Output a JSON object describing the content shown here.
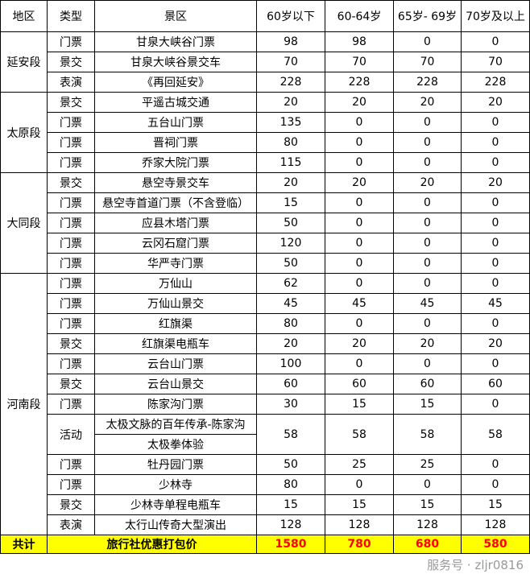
{
  "headers": [
    "地区",
    "类型",
    "景区",
    "60岁以下",
    "60-64岁",
    "65岁- 69岁",
    "70岁及以上"
  ],
  "regions": [
    {
      "name": "延安段",
      "rows": [
        {
          "type": "门票",
          "scenic": [
            "甘泉大峡谷门票"
          ],
          "prices": [
            98,
            98,
            0,
            0
          ]
        },
        {
          "type": "景交",
          "scenic": [
            "甘泉大峡谷景交车"
          ],
          "prices": [
            70,
            70,
            70,
            70
          ]
        },
        {
          "type": "表演",
          "scenic": [
            "《再回延安》"
          ],
          "prices": [
            228,
            228,
            228,
            228
          ]
        }
      ]
    },
    {
      "name": "太原段",
      "rows": [
        {
          "type": "景交",
          "scenic": [
            "平遥古城交通"
          ],
          "prices": [
            20,
            20,
            20,
            20
          ]
        },
        {
          "type": "门票",
          "scenic": [
            "五台山门票"
          ],
          "prices": [
            135,
            0,
            0,
            0
          ]
        },
        {
          "type": "门票",
          "scenic": [
            "晋祠门票"
          ],
          "prices": [
            80,
            0,
            0,
            0
          ]
        },
        {
          "type": "门票",
          "scenic": [
            "乔家大院门票"
          ],
          "prices": [
            115,
            0,
            0,
            0
          ]
        }
      ]
    },
    {
      "name": "大同段",
      "rows": [
        {
          "type": "景交",
          "scenic": [
            "悬空寺景交车"
          ],
          "prices": [
            20,
            20,
            20,
            20
          ]
        },
        {
          "type": "门票",
          "scenic": [
            "悬空寺首道门票（不含登临）"
          ],
          "prices": [
            15,
            0,
            0,
            0
          ]
        },
        {
          "type": "门票",
          "scenic": [
            "应县木塔门票"
          ],
          "prices": [
            50,
            0,
            0,
            0
          ]
        },
        {
          "type": "门票",
          "scenic": [
            "云冈石窟门票"
          ],
          "prices": [
            120,
            0,
            0,
            0
          ]
        },
        {
          "type": "门票",
          "scenic": [
            "华严寺门票"
          ],
          "prices": [
            50,
            0,
            0,
            0
          ]
        }
      ]
    },
    {
      "name": "河南段",
      "rows": [
        {
          "type": "门票",
          "scenic": [
            "万仙山"
          ],
          "prices": [
            62,
            0,
            0,
            0
          ]
        },
        {
          "type": "门票",
          "scenic": [
            "万仙山景交"
          ],
          "prices": [
            45,
            45,
            45,
            45
          ]
        },
        {
          "type": "门票",
          "scenic": [
            "红旗渠"
          ],
          "prices": [
            80,
            0,
            0,
            0
          ]
        },
        {
          "type": "景交",
          "scenic": [
            "红旗渠电瓶车"
          ],
          "prices": [
            20,
            20,
            20,
            20
          ]
        },
        {
          "type": "门票",
          "scenic": [
            "云台山门票"
          ],
          "prices": [
            100,
            0,
            0,
            0
          ]
        },
        {
          "type": "景交",
          "scenic": [
            "云台山景交"
          ],
          "prices": [
            60,
            60,
            60,
            60
          ]
        },
        {
          "type": "门票",
          "scenic": [
            "陈家沟门票"
          ],
          "prices": [
            30,
            15,
            15,
            0
          ]
        },
        {
          "type": "活动",
          "scenic": [
            "太极文脉的百年传承-陈家沟",
            "太极拳体验"
          ],
          "prices": [
            58,
            58,
            58,
            58
          ]
        },
        {
          "type": "门票",
          "scenic": [
            "牡丹园门票"
          ],
          "prices": [
            50,
            25,
            25,
            0
          ]
        },
        {
          "type": "门票",
          "scenic": [
            "少林寺"
          ],
          "prices": [
            80,
            0,
            0,
            0
          ]
        },
        {
          "type": "景交",
          "scenic": [
            "少林寺单程电瓶车"
          ],
          "prices": [
            15,
            15,
            15,
            15
          ]
        },
        {
          "type": "表演",
          "scenic": [
            "太行山传奇大型演出"
          ],
          "prices": [
            128,
            128,
            128,
            128
          ]
        }
      ]
    }
  ],
  "total": {
    "label": "共计",
    "name": "旅行社优惠打包价",
    "prices": [
      1580,
      780,
      680,
      580
    ]
  },
  "highlight_color": "#ffff00",
  "total_price_color": "#ff0000",
  "watermark": "服务号 · zljr0816"
}
